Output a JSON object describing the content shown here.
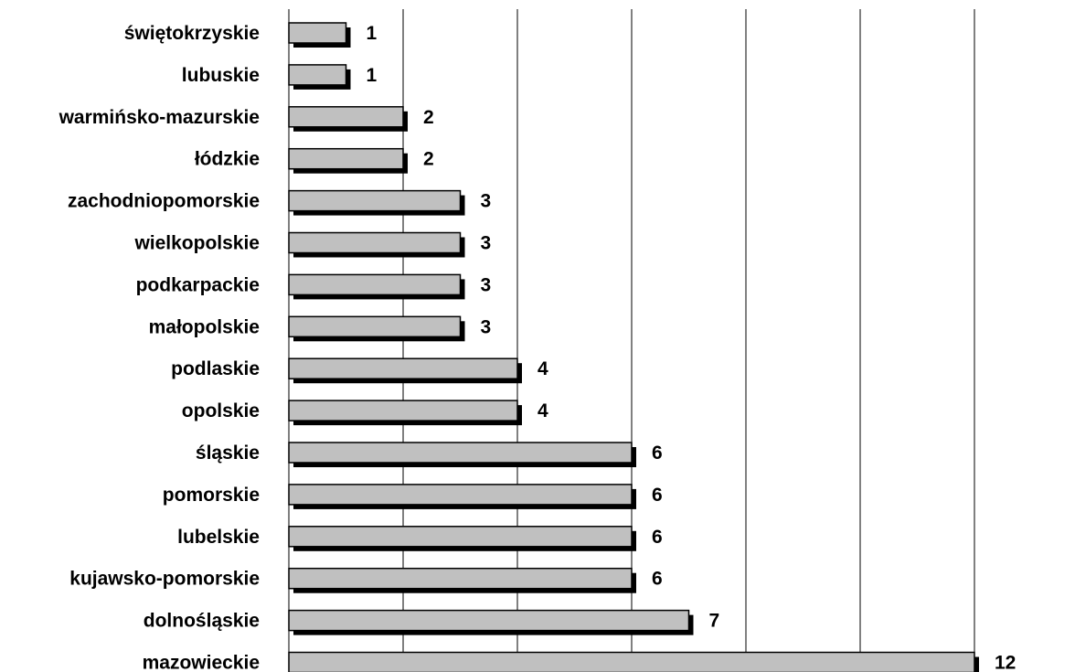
{
  "chart_data": {
    "type": "bar",
    "orientation": "horizontal",
    "title": "",
    "xlabel": "",
    "ylabel": "",
    "xlim": [
      0,
      12
    ],
    "grid": true,
    "legend": "none",
    "bar_color": "#c0c0c0",
    "shadow_color": "#000000",
    "categories": [
      "świętokrzyskie",
      "lubuskie",
      "warmińsko-mazurskie",
      "łódzkie",
      "zachodniopomorskie",
      "wielkopolskie",
      "podkarpackie",
      "małopolskie",
      "podlaskie",
      "opolskie",
      "śląskie",
      "pomorskie",
      "lubelskie",
      "kujawsko-pomorskie",
      "dolnośląskie",
      "mazowieckie"
    ],
    "values": [
      1,
      1,
      2,
      2,
      3,
      3,
      3,
      3,
      4,
      4,
      6,
      6,
      6,
      6,
      7,
      12
    ]
  }
}
